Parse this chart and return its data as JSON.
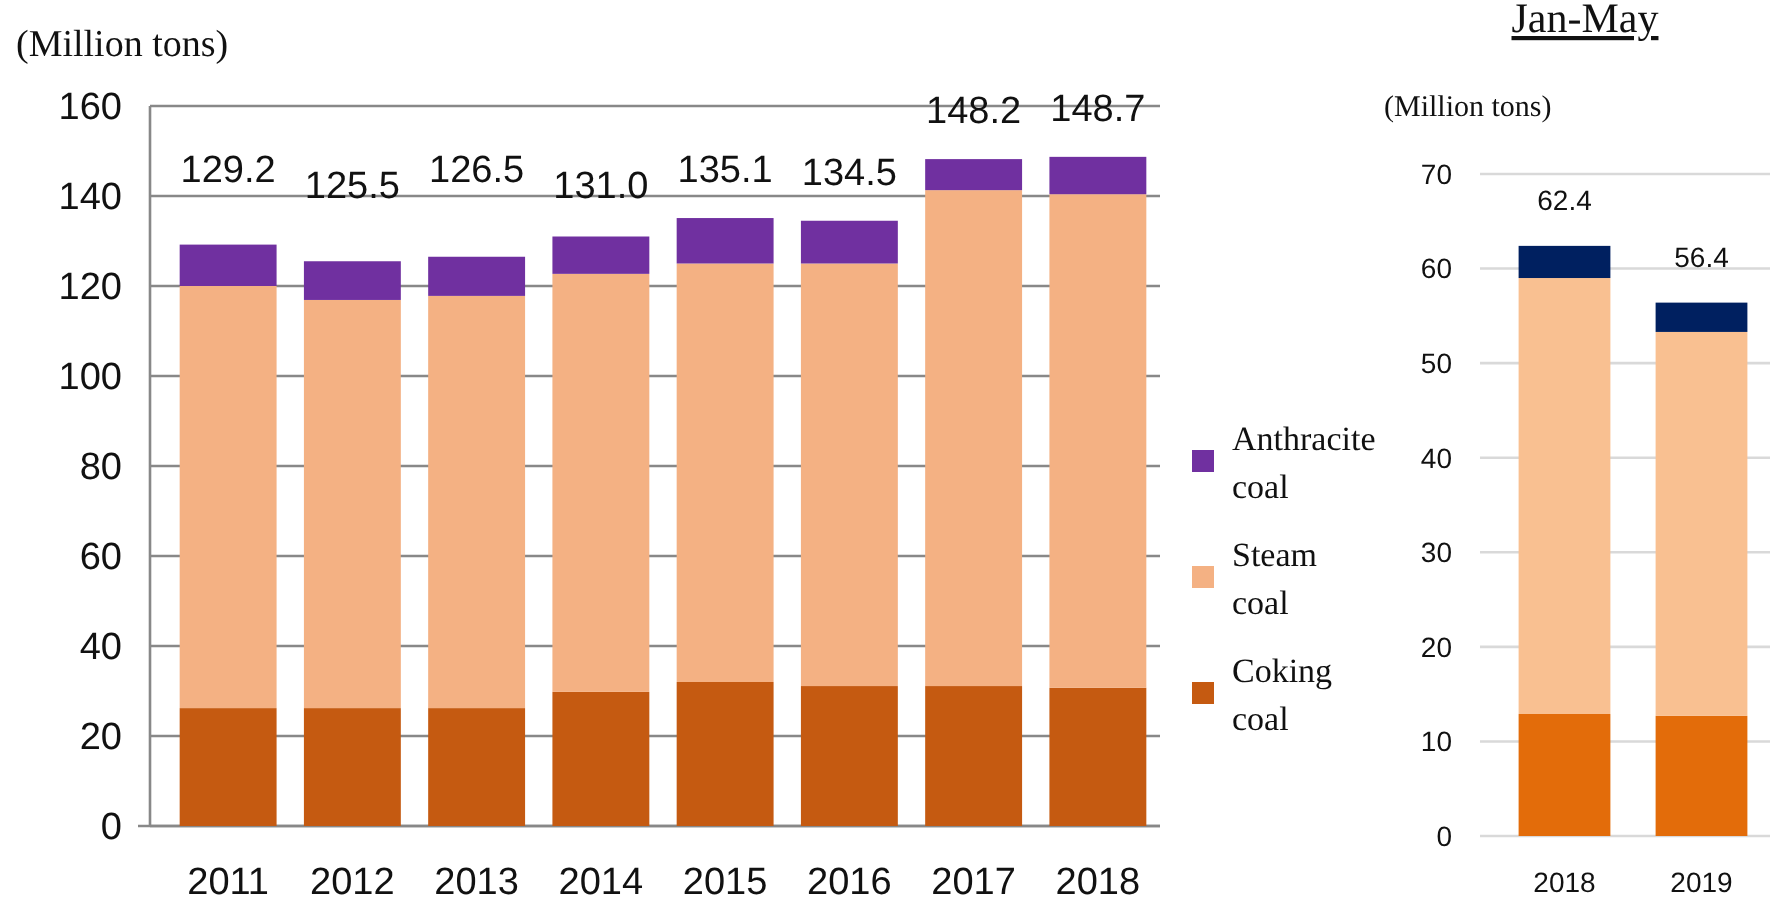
{
  "chart_data": [
    {
      "type": "bar",
      "ylabel": "(Million tons)",
      "categories": [
        "2011",
        "2012",
        "2013",
        "2014",
        "2015",
        "2016",
        "2017",
        "2018"
      ],
      "stacked": true,
      "series": [
        {
          "name": "Coking coal",
          "color": "#c55a11",
          "values": [
            26.2,
            26.2,
            26.2,
            29.8,
            32.0,
            31.1,
            31.1,
            30.7
          ]
        },
        {
          "name": "Steam coal",
          "color": "#f4b183",
          "values": [
            93.8,
            90.7,
            91.6,
            92.9,
            93.0,
            93.9,
            110.2,
            109.7
          ]
        },
        {
          "name": "Anthracite coal",
          "color": "#7030a0",
          "values": [
            9.2,
            8.6,
            8.7,
            8.3,
            10.1,
            9.5,
            6.9,
            8.3
          ]
        }
      ],
      "totals": [
        "129.2",
        "125.5",
        "126.5",
        "131.0",
        "135.1",
        "134.5",
        "148.2",
        "148.7"
      ],
      "ylim": [
        0,
        160
      ],
      "yticks": [
        0,
        20,
        40,
        60,
        80,
        100,
        120,
        140,
        160
      ],
      "grid": "y",
      "legend": "right"
    },
    {
      "type": "bar",
      "title": "Jan-May",
      "ylabel": "(Million tons)",
      "categories": [
        "2018",
        "2019"
      ],
      "stacked": true,
      "series": [
        {
          "color": "#e36c0a",
          "values": [
            12.9,
            12.7
          ]
        },
        {
          "color": "#f9c091",
          "values": [
            46.1,
            40.6
          ]
        },
        {
          "color": "#002060",
          "values": [
            3.4,
            3.1
          ]
        }
      ],
      "totals": [
        "62.4",
        "56.4"
      ],
      "ylim": [
        0,
        70
      ],
      "yticks": [
        0,
        10,
        20,
        30,
        40,
        50,
        60,
        70
      ],
      "grid": "y",
      "legend": false
    }
  ]
}
